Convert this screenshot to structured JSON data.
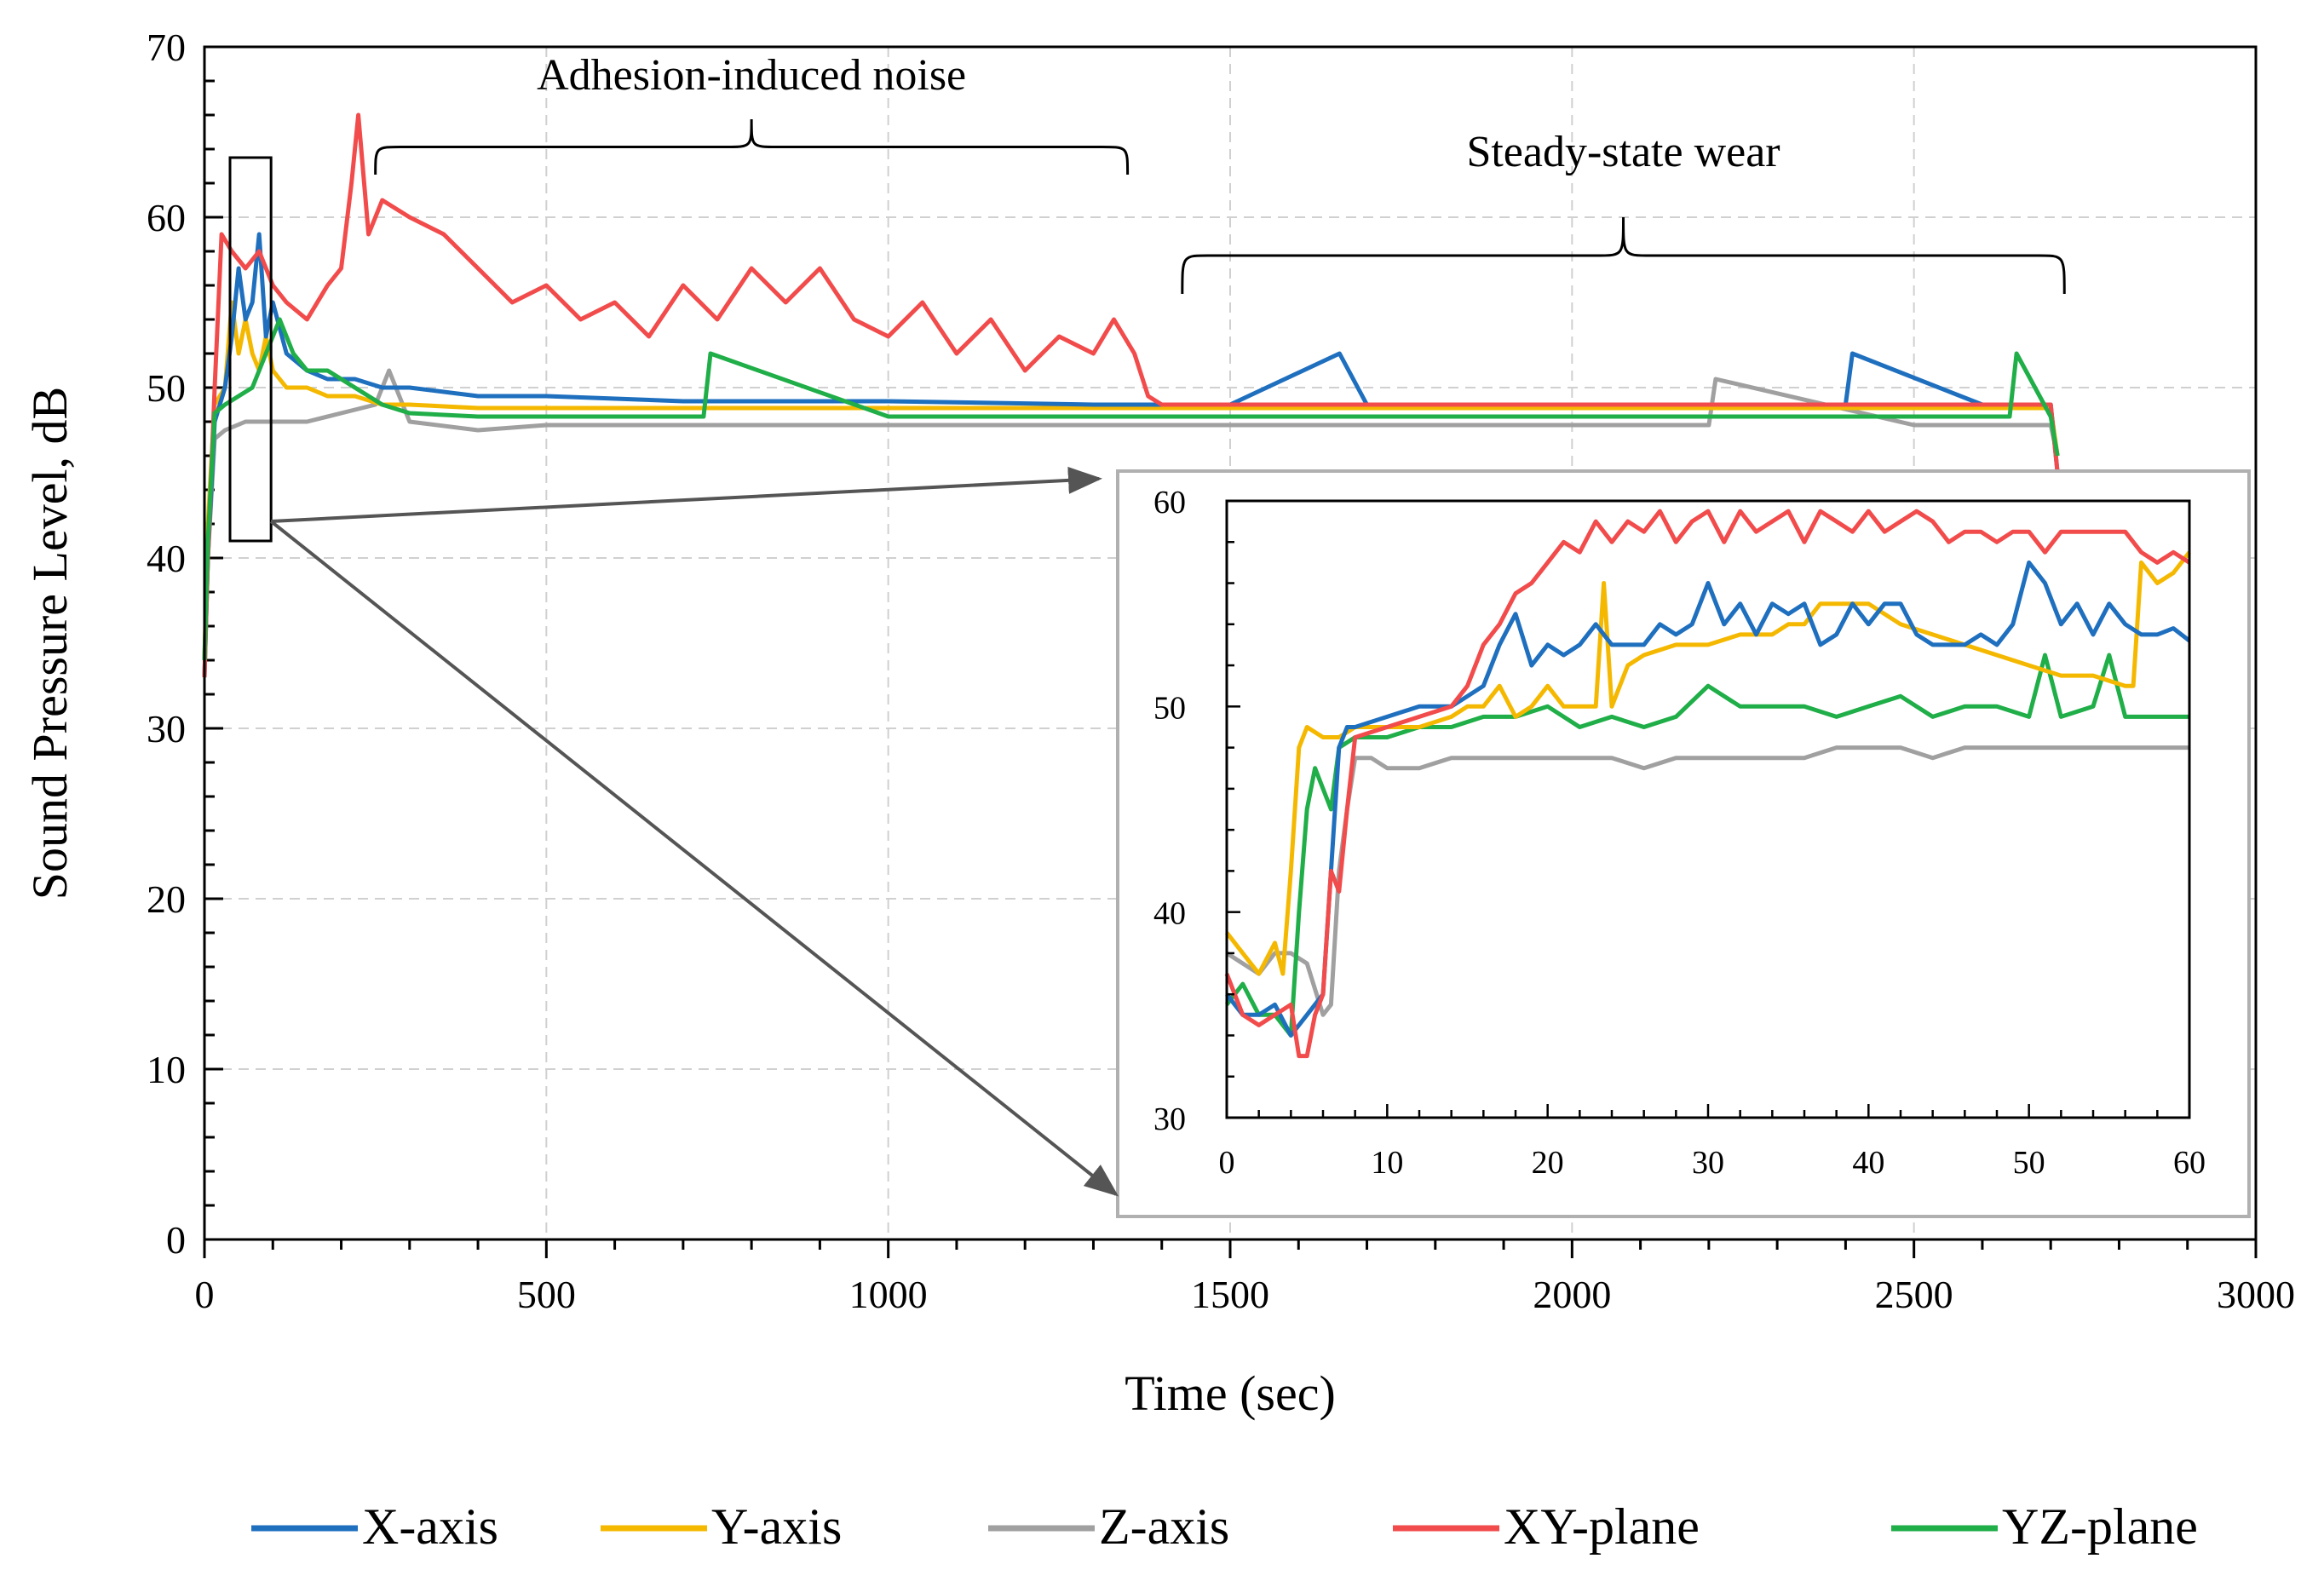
{
  "chart_data": {
    "type": "line",
    "title": "",
    "xlabel": "Time (sec)",
    "ylabel": "Sound Pressure Level, dB",
    "xlim": [
      0,
      3000
    ],
    "ylim": [
      0,
      70
    ],
    "x_ticks": [
      0,
      500,
      1000,
      1500,
      2000,
      2500,
      3000
    ],
    "y_ticks": [
      0,
      10,
      20,
      30,
      40,
      50,
      60,
      70
    ],
    "grid": true,
    "legend_position": "bottom",
    "annotations": [
      {
        "text": "Adhesion-induced noise",
        "x_range": [
          250,
          1350
        ]
      },
      {
        "text": "Steady-state wear",
        "x_range": [
          1430,
          2720
        ]
      }
    ],
    "series": [
      {
        "name": "X-axis",
        "color": "#1f6fbf",
        "x": [
          0,
          5,
          15,
          30,
          40,
          50,
          60,
          70,
          80,
          90,
          100,
          120,
          150,
          180,
          220,
          260,
          300,
          400,
          500,
          700,
          1000,
          1300,
          1500,
          1660,
          1700,
          2000,
          2400,
          2410,
          2600,
          2700,
          2710
        ],
        "y": [
          33,
          40,
          48,
          50,
          53,
          57,
          54,
          55,
          59,
          53,
          55,
          52,
          51,
          50.5,
          50.5,
          50,
          50,
          49.5,
          49.5,
          49.2,
          49.2,
          49,
          49,
          52,
          49,
          49,
          49,
          52,
          49,
          49,
          45
        ]
      },
      {
        "name": "Y-axis",
        "color": "#f5b800",
        "x": [
          0,
          5,
          15,
          30,
          40,
          50,
          60,
          70,
          80,
          90,
          100,
          120,
          150,
          180,
          220,
          260,
          300,
          400,
          500,
          700,
          1000,
          1300,
          1500,
          2000,
          2500,
          2700,
          2710
        ],
        "y": [
          34,
          42,
          49,
          50,
          55,
          52,
          54,
          52,
          51,
          53,
          51,
          50,
          50,
          49.5,
          49.5,
          49,
          49,
          48.8,
          48.8,
          48.8,
          48.8,
          48.8,
          48.8,
          48.8,
          48.8,
          48.8,
          46
        ]
      },
      {
        "name": "Z-axis",
        "color": "#a0a0a0",
        "x": [
          0,
          5,
          15,
          30,
          60,
          100,
          150,
          200,
          250,
          270,
          300,
          400,
          500,
          700,
          1000,
          1300,
          1500,
          2000,
          2200,
          2210,
          2500,
          2700,
          2710
        ],
        "y": [
          34,
          40,
          47,
          47.5,
          48,
          48,
          48,
          48.5,
          49,
          51,
          48,
          47.5,
          47.8,
          47.8,
          47.8,
          47.8,
          47.8,
          47.8,
          47.8,
          50.5,
          47.8,
          47.8,
          46
        ]
      },
      {
        "name": "XY-plane",
        "color": "#f24b4b",
        "x": [
          0,
          5,
          15,
          25,
          40,
          60,
          80,
          100,
          120,
          150,
          180,
          200,
          215,
          225,
          240,
          260,
          300,
          350,
          400,
          450,
          500,
          550,
          600,
          650,
          700,
          750,
          800,
          850,
          900,
          950,
          1000,
          1050,
          1100,
          1150,
          1200,
          1250,
          1300,
          1330,
          1360,
          1380,
          1400,
          1600,
          1800,
          2000,
          2200,
          2400,
          2600,
          2700,
          2710
        ],
        "y": [
          33,
          40,
          50,
          59,
          58,
          57,
          58,
          56,
          55,
          54,
          56,
          57,
          62,
          66,
          59,
          61,
          60,
          59,
          57,
          55,
          56,
          54,
          55,
          53,
          56,
          54,
          57,
          55,
          57,
          54,
          53,
          55,
          52,
          54,
          51,
          53,
          52,
          54,
          52,
          49.5,
          49,
          49,
          49,
          49,
          49,
          49,
          49,
          49,
          45
        ]
      },
      {
        "name": "YZ-plane",
        "color": "#1fae48",
        "x": [
          0,
          5,
          15,
          30,
          50,
          70,
          90,
          110,
          130,
          150,
          180,
          220,
          260,
          300,
          400,
          500,
          730,
          740,
          1000,
          1500,
          2000,
          2640,
          2650,
          2700,
          2710
        ],
        "y": [
          34,
          41,
          48.5,
          49,
          49.5,
          50,
          52,
          54,
          52,
          51,
          51,
          50,
          49,
          48.5,
          48.3,
          48.3,
          48.3,
          52,
          48.3,
          48.3,
          48.3,
          48.3,
          52,
          48.3,
          46
        ]
      }
    ],
    "inset": {
      "source_x_range": [
        0,
        60
      ],
      "xlim": [
        0,
        60
      ],
      "ylim": [
        30,
        60
      ],
      "x_ticks": [
        0,
        10,
        20,
        30,
        40,
        50,
        60
      ],
      "y_ticks": [
        30,
        40,
        50,
        60
      ],
      "grid": false,
      "series": [
        {
          "name": "X-axis",
          "color": "#1f6fbf",
          "x": [
            0,
            1,
            2,
            3,
            4,
            5,
            6,
            6.5,
            7,
            7.5,
            8,
            10,
            12,
            14,
            15,
            16,
            17,
            18,
            19,
            20,
            21,
            22,
            23,
            24,
            25,
            26,
            27,
            28,
            29,
            30,
            31,
            32,
            33,
            34,
            35,
            36,
            37,
            38,
            39,
            40,
            41,
            42,
            43,
            44,
            45,
            46,
            47,
            48,
            49,
            50,
            51,
            52,
            53,
            54,
            55,
            56,
            57,
            58,
            59,
            60
          ],
          "y": [
            36,
            35,
            35,
            35.5,
            34,
            35,
            36,
            42,
            48,
            49,
            49,
            49.5,
            50,
            50,
            50.5,
            51,
            53,
            54.5,
            52,
            53,
            52.5,
            53,
            54,
            53,
            53,
            53,
            54,
            53.5,
            54,
            56,
            54,
            55,
            53.5,
            55,
            54.5,
            55,
            53,
            53.5,
            55,
            54,
            55,
            55,
            53.5,
            53,
            53,
            53,
            53.5,
            53,
            54,
            57,
            56,
            54,
            55,
            53.5,
            55,
            54,
            53.5,
            53.5,
            53.8,
            53.2
          ]
        },
        {
          "name": "Y-axis",
          "color": "#f5b800",
          "x": [
            0,
            1,
            2,
            3,
            3.5,
            4,
            4.5,
            5,
            6,
            7,
            8,
            10,
            12,
            14,
            15,
            16,
            17,
            18,
            19,
            20,
            21,
            22,
            23,
            23.5,
            24,
            25,
            26,
            28,
            30,
            32,
            34,
            35,
            36,
            37,
            38,
            40,
            42,
            44,
            46,
            48,
            50,
            52,
            54,
            56,
            56.5,
            57,
            58,
            59,
            60
          ],
          "y": [
            39,
            38,
            37,
            38.5,
            37,
            42,
            48,
            49,
            48.5,
            48.5,
            49,
            49,
            49,
            49.5,
            50,
            50,
            51,
            49.5,
            50,
            51,
            50,
            50,
            50,
            56,
            50,
            52,
            52.5,
            53,
            53,
            53.5,
            53.5,
            54,
            54,
            55,
            55,
            55,
            54,
            53.5,
            53,
            52.5,
            52,
            51.5,
            51.5,
            51,
            51,
            57,
            56,
            56.5,
            57.5
          ]
        },
        {
          "name": "Z-axis",
          "color": "#a0a0a0",
          "x": [
            0,
            1,
            2,
            3,
            4,
            5,
            6,
            6.5,
            7,
            7.5,
            8,
            9,
            10,
            12,
            14,
            16,
            18,
            20,
            22,
            24,
            26,
            28,
            30,
            32,
            34,
            36,
            38,
            40,
            42,
            44,
            46,
            48,
            50,
            52,
            54,
            56,
            58,
            60
          ],
          "y": [
            38,
            37.5,
            37,
            38,
            38,
            37.5,
            35,
            35.5,
            42,
            45,
            47.5,
            47.5,
            47,
            47,
            47.5,
            47.5,
            47.5,
            47.5,
            47.5,
            47.5,
            47,
            47.5,
            47.5,
            47.5,
            47.5,
            47.5,
            48,
            48,
            48,
            47.5,
            48,
            48,
            48,
            48,
            48,
            48,
            48,
            48
          ]
        },
        {
          "name": "XY-plane",
          "color": "#f24b4b",
          "x": [
            0,
            1,
            2,
            3,
            4,
            4.5,
            5,
            5.5,
            6,
            6.5,
            7,
            7.5,
            8,
            10,
            12,
            14,
            15,
            16,
            17,
            18,
            19,
            20,
            21,
            22,
            23,
            24,
            25,
            26,
            27,
            28,
            29,
            30,
            31,
            32,
            33,
            34,
            35,
            36,
            37,
            38,
            39,
            40,
            41,
            42,
            43,
            44,
            45,
            46,
            47,
            48,
            49,
            50,
            51,
            52,
            53,
            54,
            55,
            56,
            57,
            58,
            59,
            60
          ],
          "y": [
            37,
            35,
            34.5,
            35,
            35.5,
            33,
            33,
            35,
            36,
            42,
            41,
            45,
            48.5,
            49,
            49.5,
            50,
            51,
            53,
            54,
            55.5,
            56,
            57,
            58,
            57.5,
            59,
            58,
            59,
            58.5,
            59.5,
            58,
            59,
            59.5,
            58,
            59.5,
            58.5,
            59,
            59.5,
            58,
            59.5,
            59,
            58.5,
            59.5,
            58.5,
            59,
            59.5,
            59,
            58,
            58.5,
            58.5,
            58,
            58.5,
            58.5,
            57.5,
            58.5,
            58.5,
            58.5,
            58.5,
            58.5,
            57.5,
            57,
            57.5,
            57
          ]
        },
        {
          "name": "YZ-plane",
          "color": "#1fae48",
          "x": [
            0,
            1,
            2,
            3,
            4,
            4.5,
            5,
            5.5,
            6,
            6.5,
            7,
            8,
            10,
            12,
            14,
            16,
            18,
            20,
            22,
            24,
            26,
            28,
            30,
            32,
            34,
            36,
            38,
            40,
            42,
            44,
            46,
            48,
            50,
            51,
            52,
            54,
            55,
            56,
            58,
            60
          ],
          "y": [
            35.5,
            36.5,
            35,
            35,
            34,
            40,
            45,
            47,
            46,
            45,
            48,
            48.5,
            48.5,
            49,
            49,
            49.5,
            49.5,
            50,
            49,
            49.5,
            49,
            49.5,
            51,
            50,
            50,
            50,
            49.5,
            50,
            50.5,
            49.5,
            50,
            50,
            49.5,
            52.5,
            49.5,
            50,
            52.5,
            49.5,
            49.5,
            49.5
          ]
        }
      ]
    }
  }
}
